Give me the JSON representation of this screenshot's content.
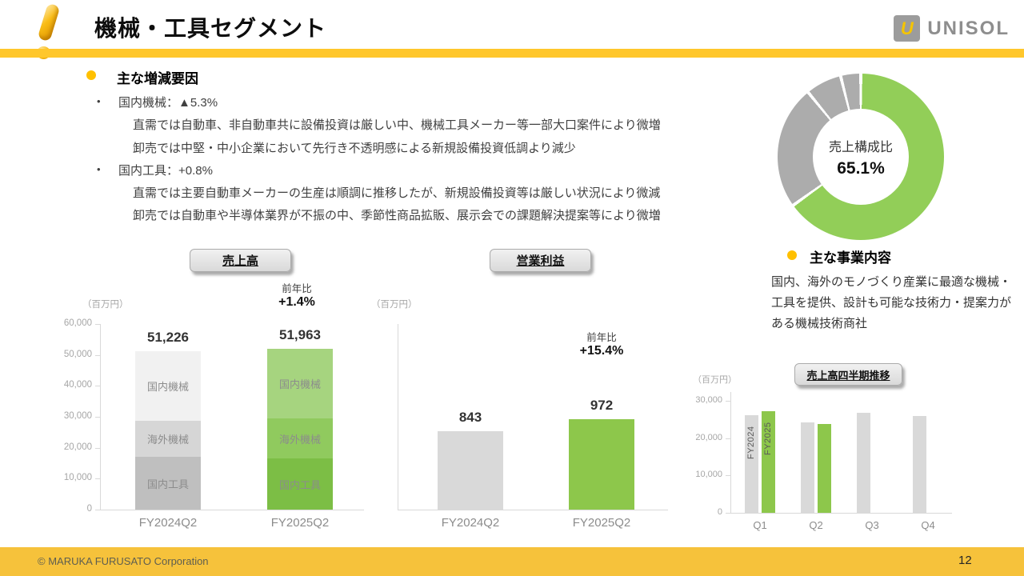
{
  "colors": {
    "accent_yellow": "#FFC72C",
    "footer_yellow": "#F6C23B",
    "bullet_yellow": "#FFC000",
    "green_solid": "#8DC74B",
    "gray_solid": "#D9D9D9",
    "donut_green": "#92CE58",
    "donut_gray": "#ACACAC",
    "axis": "#D9D9D9",
    "tick_label": "#A6A6A6",
    "category_label": "#8C8C8C"
  },
  "header": {
    "title": "機械・工具セグメント",
    "logo_text": "UNISOL",
    "logo_mark": "U"
  },
  "factors": {
    "heading": "主な増減要因",
    "items": [
      {
        "label": "国内機械：▲5.3%",
        "details": [
          "直需では自動車、非自動車共に設備投資は厳しい中、機械工具メーカー等一部大口案件により微増",
          "卸売では中堅・中小企業において先行き不透明感による新規設備投資低調より減少"
        ]
      },
      {
        "label": "国内工具：+0.8%",
        "details": [
          "直需では主要自動車メーカーの生産は順調に推移したが、新規設備投資等は厳しい状況により微減",
          "卸売では自動車や半導体業界が不振の中、季節性商品拡販、展示会での課題解決提案等により微増"
        ]
      }
    ]
  },
  "donut": {
    "center_label": "売上構成比",
    "center_value": "65.1%"
  },
  "sales_chart": {
    "button_label": "売上高",
    "unit": "（百万円）",
    "yoy_label": "前年比",
    "yoy_value": "+1.4%"
  },
  "profit_chart": {
    "button_label": "営業利益",
    "unit": "（百万円）",
    "yoy_label": "前年比",
    "yoy_value": "+15.4%"
  },
  "business": {
    "heading": "主な事業内容",
    "text": "国内、海外のモノづくり産業に最適な機械・工具を提供、設計も可能な技術力・提案力がある機械技術商社"
  },
  "quarterly_chart": {
    "button_label": "売上高四半期推移",
    "unit": "（百万円）"
  },
  "footer": {
    "copyright": "© MARUKA FURUSATO Corporation",
    "page": "12"
  },
  "chart_data": [
    {
      "type": "pie",
      "donut": true,
      "title": "売上構成比",
      "center_label": "売上構成比",
      "center_value": "65.1%",
      "values": [
        65.1,
        24.0,
        7.0,
        3.9
      ],
      "labeled_value": 65.1,
      "colors": [
        "#92CE58",
        "#ACACAC",
        "#ACACAC",
        "#ACACAC"
      ],
      "note": "only the green 65.1% slice is labeled; gray slice sizes estimated from pixels"
    },
    {
      "type": "bar",
      "subtype": "stacked",
      "title": "売上高",
      "unit": "百万円",
      "categories": [
        "FY2024Q2",
        "FY2025Q2"
      ],
      "series": [
        {
          "name": "国内工具",
          "values": [
            17000,
            16500
          ]
        },
        {
          "name": "海外機械",
          "values": [
            11726,
            13000
          ]
        },
        {
          "name": "国内機械",
          "values": [
            22500,
            22463
          ]
        }
      ],
      "series_colors": [
        [
          "#BFBFBF",
          "#7CBE45"
        ],
        [
          "#D6D6D6",
          "#90CA5E"
        ],
        [
          "#F1F1F1",
          "#A6D47F"
        ]
      ],
      "totals": [
        51226,
        51963
      ],
      "totals_fmt": [
        "51,226",
        "51,963"
      ],
      "yoy": "+1.4%",
      "ylim": [
        0,
        60000
      ],
      "y_ticks": [
        0,
        10000,
        20000,
        30000,
        40000,
        50000,
        60000
      ],
      "y_tick_labels": [
        "0",
        "10,000",
        "20,000",
        "30,000",
        "40,000",
        "50,000",
        "60,000"
      ],
      "note": "segment splits estimated from bar proportions; totals are the labeled values"
    },
    {
      "type": "bar",
      "title": "営業利益",
      "unit": "百万円",
      "categories": [
        "FY2024Q2",
        "FY2025Q2"
      ],
      "values": [
        843,
        972
      ],
      "values_fmt": [
        "843",
        "972"
      ],
      "colors": [
        "#D9D9D9",
        "#8DC74B"
      ],
      "yoy": "+15.4%",
      "ylim": [
        0,
        2000
      ]
    },
    {
      "type": "bar",
      "subtype": "grouped",
      "title": "売上高四半期推移",
      "unit": "百万円",
      "categories": [
        "Q1",
        "Q2",
        "Q3",
        "Q4"
      ],
      "series": [
        {
          "name": "FY2024",
          "color": "#D9D9D9",
          "values": [
            26100,
            24200,
            26800,
            26000
          ]
        },
        {
          "name": "FY2025",
          "color": "#8DC74B",
          "values": [
            27300,
            23800,
            null,
            null
          ]
        }
      ],
      "ylim": [
        0,
        30000
      ],
      "y_ticks": [
        0,
        10000,
        20000,
        30000
      ],
      "y_tick_labels": [
        "0",
        "10,000",
        "20,000",
        "30,000"
      ],
      "note": "values estimated from bar heights; FY2025 Q3/Q4 bars not shown"
    }
  ]
}
